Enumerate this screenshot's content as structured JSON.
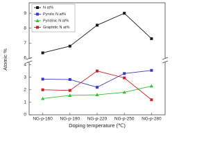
{
  "chart_data": [
    {
      "type": "line",
      "ylim": [
        6,
        9.7
      ],
      "yticks": [
        6,
        7,
        8,
        9
      ],
      "series": [
        {
          "name": "N at%",
          "color": "#1a1a1a",
          "marker": "square",
          "values": [
            6.35,
            6.8,
            8.2,
            9.0,
            7.3
          ]
        }
      ]
    },
    {
      "type": "line",
      "x_label": "Doping temperature (℃)",
      "y_label": "Atomic %",
      "categories": [
        "NG-p-160",
        "NG-p-190",
        "NG-p-220",
        "NG-p-250",
        "NG-p-280"
      ],
      "ylim": [
        0,
        4.2
      ],
      "yticks": [
        0,
        1,
        2,
        3,
        4
      ],
      "series": [
        {
          "name": "Pyrolic N at%",
          "color": "#3a3acc",
          "marker": "square",
          "values": [
            2.85,
            2.82,
            2.2,
            3.3,
            3.55
          ]
        },
        {
          "name": "Pyridinic N at%",
          "color": "#2fbf2f",
          "marker": "triangle",
          "values": [
            1.3,
            1.55,
            1.6,
            1.8,
            2.3
          ]
        },
        {
          "name": "Graphitic N at%",
          "color": "#cc2222",
          "marker": "square",
          "values": [
            2.0,
            1.95,
            3.5,
            2.95,
            1.2
          ]
        }
      ]
    }
  ]
}
